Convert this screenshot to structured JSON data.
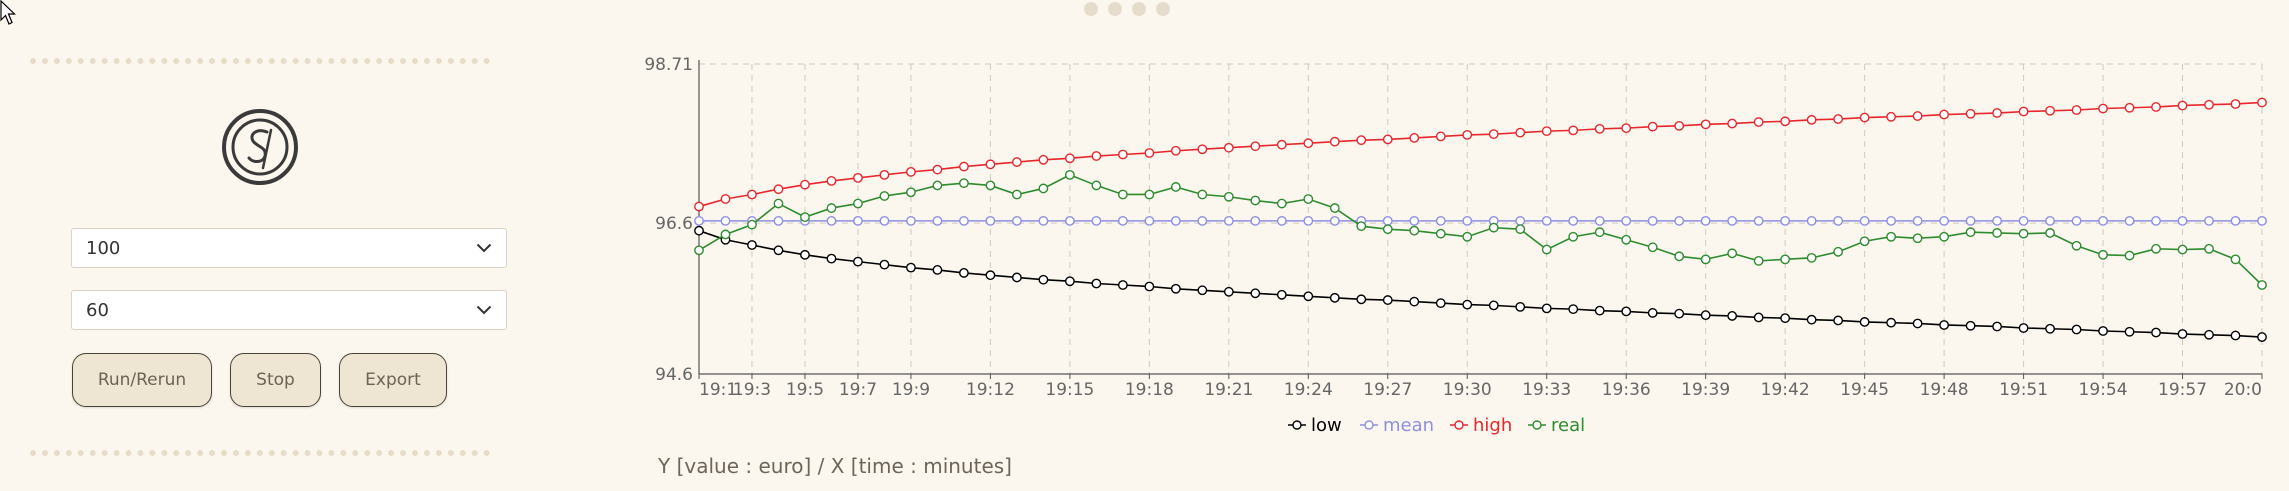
{
  "controls": {
    "select_1": {
      "value": "100"
    },
    "select_2": {
      "value": "60"
    },
    "run_label": "Run/Rerun",
    "stop_label": "Stop",
    "export_label": "Export"
  },
  "icons": {
    "cursor": "mouse-pointer-icon",
    "logo": "s-logo-icon",
    "chevron": "chevron-down-icon"
  },
  "colors": {
    "low": "#000000",
    "mean": "#8f8fe0",
    "high": "#e8262b",
    "real": "#2e8b2e",
    "background": "#fbf7ef"
  },
  "caption": "Y [value : euro] / X [time : minutes]",
  "chart_data": {
    "type": "line",
    "y_ticks": [
      "94.6",
      "96.6",
      "98.71"
    ],
    "ylim": [
      94.6,
      98.71
    ],
    "x_ticks": [
      "19:1",
      "19:3",
      "19:5",
      "19:7",
      "19:9",
      "19:12",
      "19:15",
      "19:18",
      "19:21",
      "19:24",
      "19:27",
      "19:30",
      "19:33",
      "19:36",
      "19:39",
      "19:42",
      "19:45",
      "19:48",
      "19:51",
      "19:54",
      "19:57",
      "20:0"
    ],
    "x_ticks_minutes": [
      1,
      3,
      5,
      7,
      9,
      12,
      15,
      18,
      21,
      24,
      27,
      30,
      33,
      36,
      39,
      42,
      45,
      48,
      51,
      54,
      57,
      60
    ],
    "grid": true,
    "legend_position": "bottom",
    "x": [
      1,
      2,
      3,
      4,
      5,
      6,
      7,
      8,
      9,
      10,
      11,
      12,
      13,
      14,
      15,
      16,
      17,
      18,
      19,
      20,
      21,
      22,
      23,
      24,
      25,
      26,
      27,
      28,
      29,
      30,
      31,
      32,
      33,
      34,
      35,
      36,
      37,
      38,
      39,
      40,
      41,
      42,
      43,
      44,
      45,
      46,
      47,
      48,
      49,
      50,
      51,
      52,
      53,
      54,
      55,
      56,
      57,
      58,
      59,
      60
    ],
    "series": [
      {
        "name": "low",
        "values": [
          96.5,
          96.38,
          96.31,
          96.24,
          96.18,
          96.13,
          96.09,
          96.05,
          96.01,
          95.98,
          95.94,
          95.91,
          95.88,
          95.85,
          95.83,
          95.8,
          95.78,
          95.76,
          95.73,
          95.71,
          95.69,
          95.67,
          95.65,
          95.63,
          95.61,
          95.59,
          95.58,
          95.56,
          95.54,
          95.52,
          95.51,
          95.49,
          95.47,
          95.46,
          95.44,
          95.43,
          95.41,
          95.4,
          95.38,
          95.37,
          95.35,
          95.34,
          95.32,
          95.31,
          95.29,
          95.28,
          95.27,
          95.25,
          95.24,
          95.23,
          95.21,
          95.2,
          95.19,
          95.17,
          95.16,
          95.15,
          95.13,
          95.12,
          95.11,
          95.09
        ]
      },
      {
        "name": "mean",
        "values": [
          96.63,
          96.63,
          96.63,
          96.63,
          96.63,
          96.63,
          96.63,
          96.63,
          96.63,
          96.63,
          96.63,
          96.63,
          96.63,
          96.63,
          96.63,
          96.63,
          96.63,
          96.63,
          96.63,
          96.63,
          96.63,
          96.63,
          96.63,
          96.63,
          96.63,
          96.63,
          96.63,
          96.63,
          96.63,
          96.63,
          96.63,
          96.63,
          96.63,
          96.63,
          96.63,
          96.63,
          96.63,
          96.63,
          96.63,
          96.63,
          96.63,
          96.63,
          96.63,
          96.63,
          96.63,
          96.63,
          96.63,
          96.63,
          96.63,
          96.63,
          96.63,
          96.63,
          96.63,
          96.63,
          96.63,
          96.63,
          96.63,
          96.63,
          96.63,
          96.63
        ]
      },
      {
        "name": "high",
        "values": [
          96.82,
          96.92,
          96.98,
          97.05,
          97.11,
          97.16,
          97.2,
          97.24,
          97.28,
          97.31,
          97.35,
          97.38,
          97.41,
          97.44,
          97.46,
          97.49,
          97.51,
          97.53,
          97.56,
          97.58,
          97.6,
          97.62,
          97.64,
          97.66,
          97.68,
          97.7,
          97.71,
          97.73,
          97.75,
          97.77,
          97.78,
          97.8,
          97.82,
          97.83,
          97.85,
          97.86,
          97.88,
          97.89,
          97.91,
          97.92,
          97.94,
          97.95,
          97.97,
          97.98,
          98.0,
          98.01,
          98.02,
          98.04,
          98.05,
          98.06,
          98.08,
          98.09,
          98.1,
          98.12,
          98.13,
          98.14,
          98.16,
          98.17,
          98.18,
          98.2
        ]
      },
      {
        "name": "real",
        "values": [
          96.24,
          96.45,
          96.58,
          96.86,
          96.68,
          96.8,
          96.86,
          96.96,
          97.01,
          97.1,
          97.13,
          97.1,
          96.98,
          97.06,
          97.24,
          97.1,
          96.98,
          96.98,
          97.08,
          96.98,
          96.95,
          96.9,
          96.86,
          96.92,
          96.8,
          96.56,
          96.52,
          96.5,
          96.46,
          96.42,
          96.54,
          96.52,
          96.25,
          96.42,
          96.48,
          96.38,
          96.28,
          96.16,
          96.12,
          96.2,
          96.1,
          96.12,
          96.14,
          96.22,
          96.36,
          96.42,
          96.4,
          96.42,
          96.48,
          96.47,
          96.46,
          96.47,
          96.3,
          96.18,
          96.17,
          96.26,
          96.25,
          96.26,
          96.12,
          95.78
        ]
      }
    ]
  }
}
